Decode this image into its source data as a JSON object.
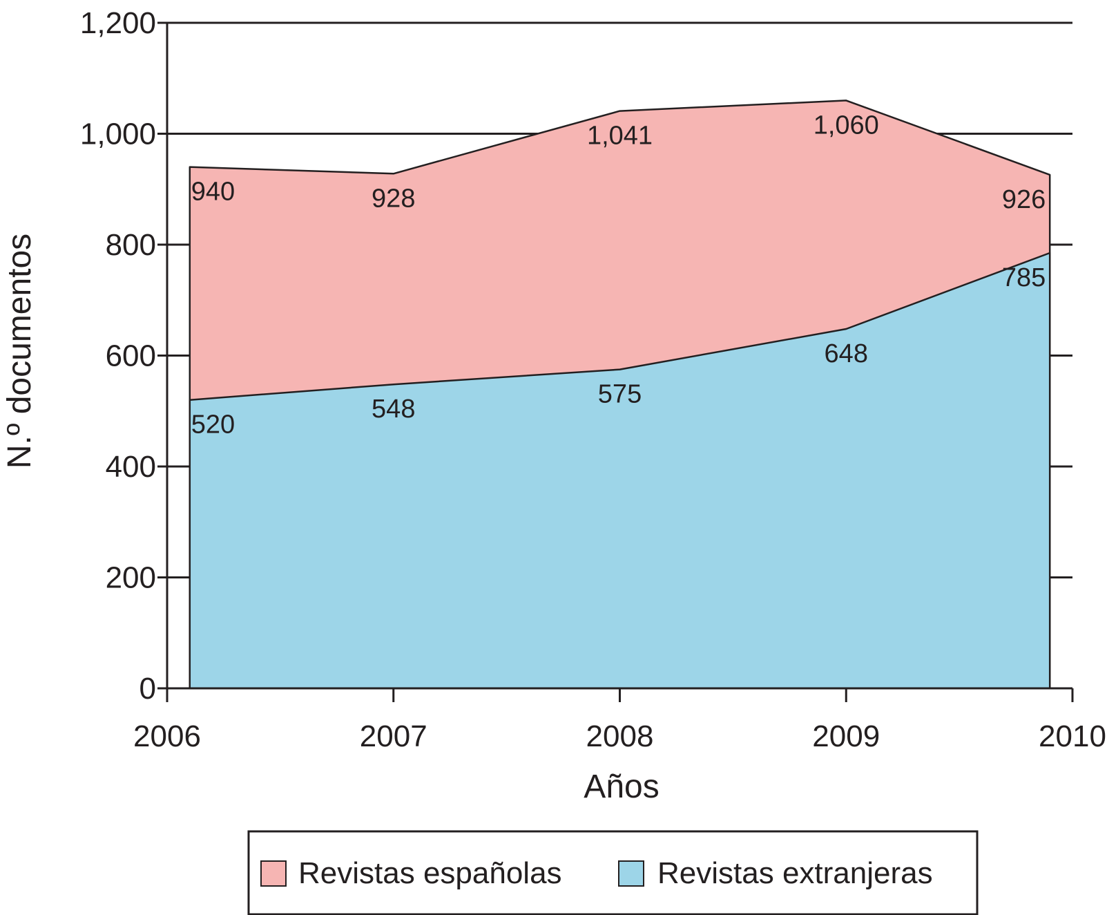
{
  "chart_data": {
    "type": "area",
    "stacked": false,
    "xlabel": "Años",
    "ylabel": "N.º documentos",
    "x_ticks": [
      "2006",
      "2007",
      "2008",
      "2009",
      "2010"
    ],
    "y_ticks": [
      "0",
      "200",
      "400",
      "600",
      "800",
      "1,000",
      "1,200"
    ],
    "ylim": [
      0,
      1200
    ],
    "grid": "horizontal",
    "legend_position": "bottom",
    "x": [
      2006.1,
      2007.0,
      2008.0,
      2009.0,
      2009.9
    ],
    "series": [
      {
        "name": "Revistas españolas",
        "color": "#f6b5b3",
        "values": [
          940,
          928,
          1041,
          1060,
          926
        ],
        "labels": [
          "940",
          "928",
          "1,041",
          "1,060",
          "926"
        ]
      },
      {
        "name": "Revistas extranjeras",
        "color": "#9dd5e8",
        "values": [
          520,
          548,
          575,
          648,
          785
        ],
        "labels": [
          "520",
          "548",
          "575",
          "648",
          "785"
        ]
      }
    ]
  }
}
